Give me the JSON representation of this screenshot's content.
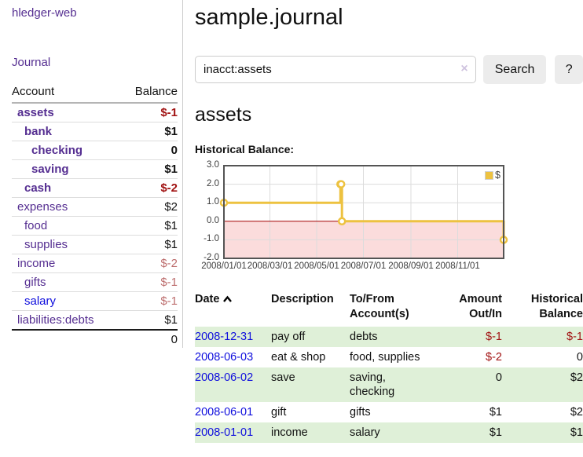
{
  "app": {
    "brand": "hledger-web"
  },
  "sidebar": {
    "nav": {
      "journal": "Journal"
    },
    "table": {
      "headers": {
        "account": "Account",
        "balance": "Balance"
      },
      "rows": [
        {
          "name": "assets",
          "balance": "$-1"
        },
        {
          "name": "bank",
          "balance": "$1"
        },
        {
          "name": "checking",
          "balance": "0"
        },
        {
          "name": "saving",
          "balance": "$1"
        },
        {
          "name": "cash",
          "balance": "$-2"
        },
        {
          "name": "expenses",
          "balance": "$2"
        },
        {
          "name": "food",
          "balance": "$1"
        },
        {
          "name": "supplies",
          "balance": "$1"
        },
        {
          "name": "income",
          "balance": "$-2"
        },
        {
          "name": "gifts",
          "balance": "$-1"
        },
        {
          "name": "salary",
          "balance": "$-1"
        },
        {
          "name": "liabilities:debts",
          "balance": "$1"
        }
      ],
      "total": "0"
    }
  },
  "main": {
    "title": "sample.journal",
    "search": {
      "value": "inacct:assets",
      "clear": "×",
      "button": "Search",
      "help": "?"
    },
    "heading": "assets",
    "chart_title": "Historical Balance:"
  },
  "chart_data": {
    "type": "line",
    "title": "Historical Balance:",
    "x_range": [
      "2008-01-01",
      "2008-12-31"
    ],
    "ylim": [
      -2,
      3
    ],
    "x_ticks": [
      "2008/01/01",
      "2008/03/01",
      "2008/05/01",
      "2008/07/01",
      "2008/09/01",
      "2008/11/01"
    ],
    "y_ticks": [
      "3.0",
      "2.0",
      "1.0",
      "0.0",
      "-1.0",
      "-2.0"
    ],
    "series": [
      {
        "name": "$",
        "color": "#EDC240",
        "step": true,
        "points": [
          [
            "2008-01-01",
            1
          ],
          [
            "2008-06-01",
            2
          ],
          [
            "2008-06-02",
            2
          ],
          [
            "2008-06-03",
            0
          ],
          [
            "2008-12-31",
            -1
          ]
        ]
      }
    ],
    "grid": true,
    "grid_color": "#dcdcdc",
    "negative_region_color": "#fbdcdc",
    "zero_line_color": "#a40000",
    "border_color": "#545454",
    "legend": {
      "label": "$",
      "position": "top-right",
      "swatch_color": "#EDC240"
    }
  },
  "register": {
    "headers": {
      "date": "Date",
      "description": "Description",
      "accounts": "To/From Account(s)",
      "amount": "Amount Out/In",
      "balance": "Historical Balance"
    },
    "rows": [
      {
        "date": "2008-12-31",
        "description": "pay off",
        "accounts": "debts",
        "amount": "$-1",
        "balance": "$-1"
      },
      {
        "date": "2008-06-03",
        "description": "eat & shop",
        "accounts": "food, supplies",
        "amount": "$-2",
        "balance": "0"
      },
      {
        "date": "2008-06-02",
        "description": "save",
        "accounts": "saving, checking",
        "amount": "0",
        "balance": "$2"
      },
      {
        "date": "2008-06-01",
        "description": "gift",
        "accounts": "gifts",
        "amount": "$1",
        "balance": "$2"
      },
      {
        "date": "2008-01-01",
        "description": "income",
        "accounts": "salary",
        "amount": "$1",
        "balance": "$1"
      }
    ]
  }
}
